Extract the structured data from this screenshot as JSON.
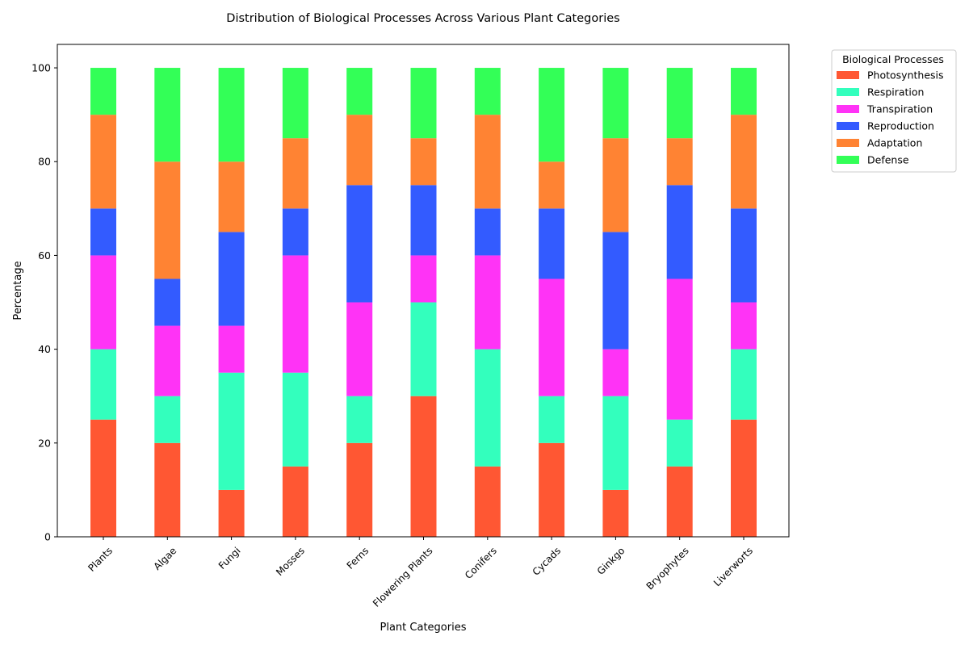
{
  "chart_data": {
    "type": "bar",
    "stacked": true,
    "title": "Distribution of Biological Processes Across Various Plant Categories",
    "xlabel": "Plant Categories",
    "ylabel": "Percentage",
    "ylim": [
      0,
      105
    ],
    "yticks": [
      0,
      20,
      40,
      60,
      80,
      100
    ],
    "grid": false,
    "legend_title": "Biological Processes",
    "legend_position": "outside-top-right",
    "categories": [
      "Plants",
      "Algae",
      "Fungi",
      "Mosses",
      "Ferns",
      "Flowering Plants",
      "Conifers",
      "Cycads",
      "Ginkgo",
      "Bryophytes",
      "Liverworts"
    ],
    "series": [
      {
        "name": "Photosynthesis",
        "color": "#ff5733",
        "values": [
          25,
          20,
          10,
          15,
          20,
          30,
          15,
          20,
          10,
          15,
          25
        ]
      },
      {
        "name": "Respiration",
        "color": "#33ffbd",
        "values": [
          15,
          10,
          25,
          20,
          10,
          20,
          25,
          10,
          20,
          10,
          15
        ]
      },
      {
        "name": "Transpiration",
        "color": "#ff33f6",
        "values": [
          20,
          15,
          10,
          25,
          20,
          10,
          20,
          25,
          10,
          30,
          10
        ]
      },
      {
        "name": "Reproduction",
        "color": "#335bff",
        "values": [
          10,
          10,
          20,
          10,
          25,
          15,
          10,
          15,
          25,
          20,
          20
        ]
      },
      {
        "name": "Adaptation",
        "color": "#ff8333",
        "values": [
          20,
          25,
          15,
          15,
          15,
          10,
          20,
          10,
          20,
          10,
          20
        ]
      },
      {
        "name": "Defense",
        "color": "#33ff57",
        "values": [
          10,
          20,
          20,
          15,
          10,
          15,
          10,
          20,
          15,
          15,
          10
        ]
      }
    ]
  }
}
